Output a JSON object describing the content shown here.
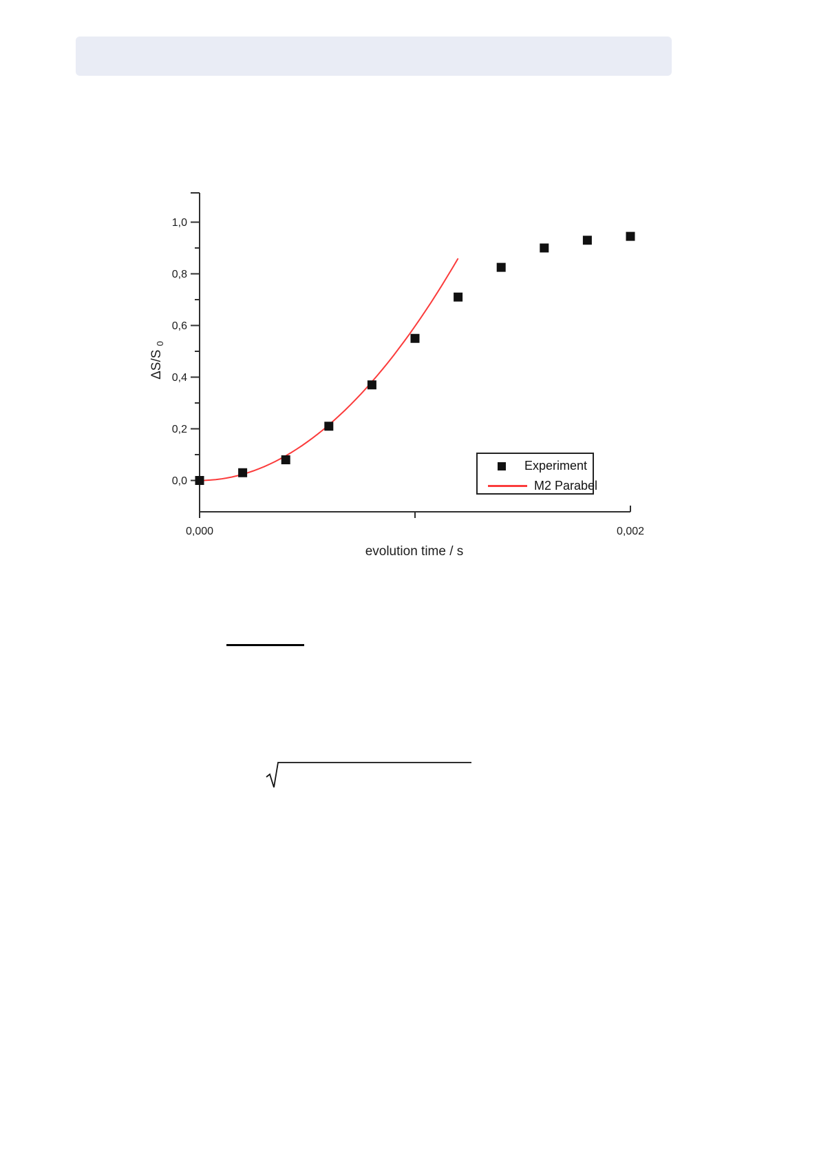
{
  "page": {
    "background": "#ffffff"
  },
  "header_bar": {
    "color": "#e9ecf5"
  },
  "chart_data": {
    "type": "scatter",
    "title": "",
    "xlabel": "evolution time / s",
    "ylabel": "ΔS/S₀",
    "ylabel_main": "ΔS/S",
    "ylabel_sub": "0",
    "xlim": [
      0,
      0.002
    ],
    "ylim": [
      -0.12,
      1.11
    ],
    "grid": "off",
    "decimal_separator": "comma",
    "xticks": [
      {
        "value": 0.0,
        "label": "0,000"
      },
      {
        "value": 0.001,
        "label": ""
      },
      {
        "value": 0.002,
        "label": "0,002"
      }
    ],
    "yticks": [
      {
        "value": 0.0,
        "label": "0,0"
      },
      {
        "value": 0.2,
        "label": "0,2"
      },
      {
        "value": 0.4,
        "label": "0,4"
      },
      {
        "value": 0.6,
        "label": "0,6"
      },
      {
        "value": 0.8,
        "label": "0,8"
      },
      {
        "value": 1.0,
        "label": "1,0"
      }
    ],
    "y_minor_ticks": [
      0.1,
      0.3,
      0.5,
      0.7,
      0.9
    ],
    "legend": {
      "position": "inside-bottom-right",
      "border": true
    },
    "series": [
      {
        "name": "Experiment",
        "type": "scatter",
        "marker": "filled-square",
        "color": "#111111",
        "points": [
          [
            0.0,
            0.0
          ],
          [
            0.0002,
            0.03
          ],
          [
            0.0004,
            0.08
          ],
          [
            0.0006,
            0.21
          ],
          [
            0.0008,
            0.37
          ],
          [
            0.001,
            0.55
          ],
          [
            0.0012,
            0.71
          ],
          [
            0.0014,
            0.825
          ],
          [
            0.0016,
            0.9
          ],
          [
            0.0018,
            0.93
          ],
          [
            0.002,
            0.945
          ]
        ]
      },
      {
        "name": "M2 Parabel",
        "type": "line",
        "color": "#fb3b3b",
        "equation": "y = a·x²",
        "a": 597000,
        "x_range": [
          0.0,
          0.0012
        ]
      }
    ]
  },
  "math": {
    "radical_glyph": "√"
  }
}
